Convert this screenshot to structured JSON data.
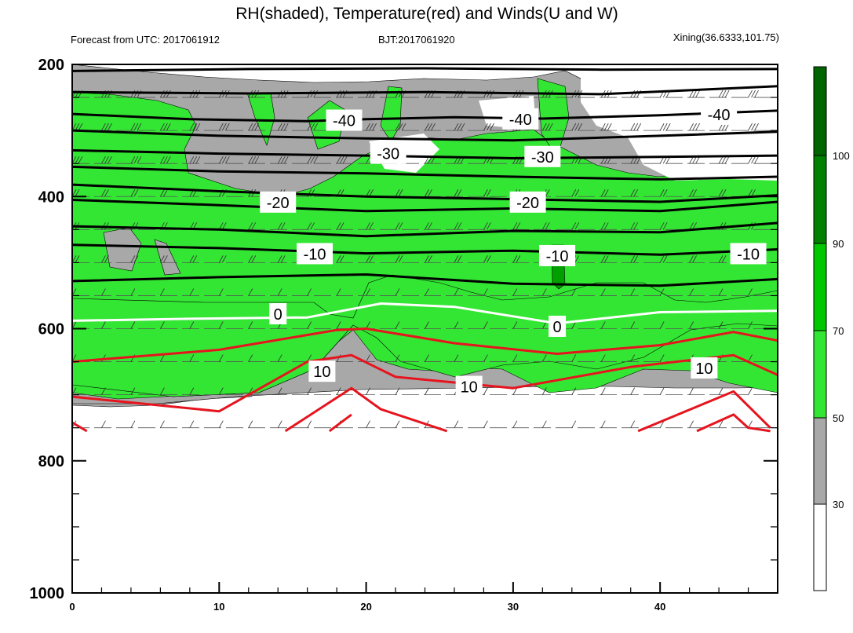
{
  "chart_data": {
    "type": "heatmap",
    "title": "RH(shaded), Temperature(red) and Winds(U and W)",
    "subtitle_left": "Forecast from UTC: 2017061912",
    "subtitle_center": "BJT:2017061920",
    "subtitle_right": "Xining(36.6333,101.75)",
    "x_axis": {
      "ticks": [
        0,
        10,
        20,
        30,
        40
      ],
      "range": [
        0,
        48
      ]
    },
    "y_axis": {
      "ticks": [
        200,
        400,
        600,
        800,
        1000
      ],
      "range": [
        200,
        1000
      ]
    },
    "colorbar": {
      "levels": [
        30,
        50,
        70,
        90,
        100
      ],
      "colors": [
        "#ffffff",
        "#a8a8a8",
        "#33e633",
        "#00c800",
        "#008000",
        "#006400"
      ]
    },
    "temperature_contours": [
      {
        "value": -40,
        "label": "-40",
        "color": "#000000",
        "labels_at": [
          {
            "x": 18.5,
            "y": 285
          },
          {
            "x": 30.5,
            "y": 283
          },
          {
            "x": 44,
            "y": 276
          }
        ],
        "lines": [
          {
            "x": [
              0,
              12,
              24,
              36,
              48
            ],
            "y": [
              210,
              207,
              206,
              208,
              207
            ]
          },
          {
            "x": [
              0,
              12,
              24,
              36,
              48
            ],
            "y": [
              242,
              244,
              242,
              245,
              233
            ]
          },
          {
            "x": [
              0,
              8,
              16,
              20,
              26,
              32,
              40,
              48
            ],
            "y": [
              275,
              283,
              286,
              283,
              280,
              282,
              277,
              270
            ]
          }
        ]
      },
      {
        "value": -30,
        "label": "-30",
        "color": "#000000",
        "labels_at": [
          {
            "x": 21.5,
            "y": 335
          },
          {
            "x": 32,
            "y": 340
          }
        ],
        "lines": [
          {
            "x": [
              0,
              10,
              20,
              30,
              40,
              48
            ],
            "y": [
              300,
              308,
              312,
              315,
              308,
              302
            ]
          },
          {
            "x": [
              0,
              10,
              20,
              30,
              40,
              48
            ],
            "y": [
              330,
              335,
              338,
              342,
              340,
              338
            ]
          },
          {
            "x": [
              0,
              10,
              20,
              30,
              40,
              48
            ],
            "y": [
              355,
              362,
              365,
              370,
              374,
              370
            ]
          }
        ]
      },
      {
        "value": -20,
        "label": "-20",
        "color": "#000000",
        "labels_at": [
          {
            "x": 14,
            "y": 409
          },
          {
            "x": 31,
            "y": 409
          }
        ],
        "lines": [
          {
            "x": [
              0,
              10,
              20,
              30,
              40,
              48
            ],
            "y": [
              382,
              392,
              400,
              404,
              408,
              398
            ]
          },
          {
            "x": [
              0,
              10,
              20,
              30,
              40,
              48
            ],
            "y": [
              405,
              413,
              422,
              418,
              422,
              408
            ]
          },
          {
            "x": [
              0,
              10,
              20,
              30,
              40,
              48
            ],
            "y": [
              445,
              450,
              460,
              452,
              454,
              440
            ]
          }
        ]
      },
      {
        "value": -10,
        "label": "-10",
        "color": "#000000",
        "labels_at": [
          {
            "x": 16.5,
            "y": 487
          },
          {
            "x": 33,
            "y": 490
          },
          {
            "x": 46,
            "y": 487
          }
        ],
        "lines": [
          {
            "x": [
              0,
              10,
              20,
              30,
              40,
              48
            ],
            "y": [
              473,
              478,
              486,
              482,
              488,
              480
            ]
          },
          {
            "x": [
              0,
              10,
              20,
              25,
              30,
              40,
              48
            ],
            "y": [
              528,
              522,
              518,
              525,
              532,
              535,
              525
            ]
          }
        ]
      },
      {
        "value": 0,
        "label": "0",
        "color": "#ffffff",
        "labels_at": [
          {
            "x": 14,
            "y": 578
          },
          {
            "x": 33,
            "y": 597
          }
        ],
        "lines": [
          {
            "x": [
              0,
              8,
              16,
              21,
              26,
              33,
              40,
              48
            ],
            "y": [
              588,
              585,
              583,
              562,
              567,
              592,
              575,
              573
            ]
          }
        ]
      },
      {
        "value": 10,
        "label": "10",
        "color": "#e6141e",
        "labels_at": [
          {
            "x": 17,
            "y": 665
          },
          {
            "x": 27,
            "y": 688
          },
          {
            "x": 43,
            "y": 660
          }
        ],
        "lines": [
          {
            "x": [
              0,
              10,
              18,
              20,
              26,
              33,
              40,
              45,
              48
            ],
            "y": [
              650,
              632,
              602,
              600,
              622,
              638,
              625,
              605,
              618
            ]
          },
          {
            "x": [
              0,
              10,
              16,
              19,
              22,
              30,
              38,
              45,
              48
            ],
            "y": [
              703,
              725,
              650,
              640,
              673,
              690,
              658,
              640,
              670
            ]
          },
          {
            "x": [
              0,
              1
            ],
            "y": [
              742,
              755
            ]
          },
          {
            "x": [
              14.5,
              19,
              21,
              25.5
            ],
            "y": [
              755,
              690,
              722,
              755
            ]
          },
          {
            "x": [
              17.5,
              19
            ],
            "y": [
              755,
              730
            ]
          },
          {
            "x": [
              38.5,
              45,
              47.5
            ],
            "y": [
              755,
              695,
              750
            ]
          },
          {
            "x": [
              42.5,
              45,
              46,
              47.5
            ],
            "y": [
              755,
              730,
              750,
              755
            ]
          }
        ]
      }
    ],
    "legend": "none",
    "grid": "dashed horizontal lines at wind-barb levels"
  }
}
